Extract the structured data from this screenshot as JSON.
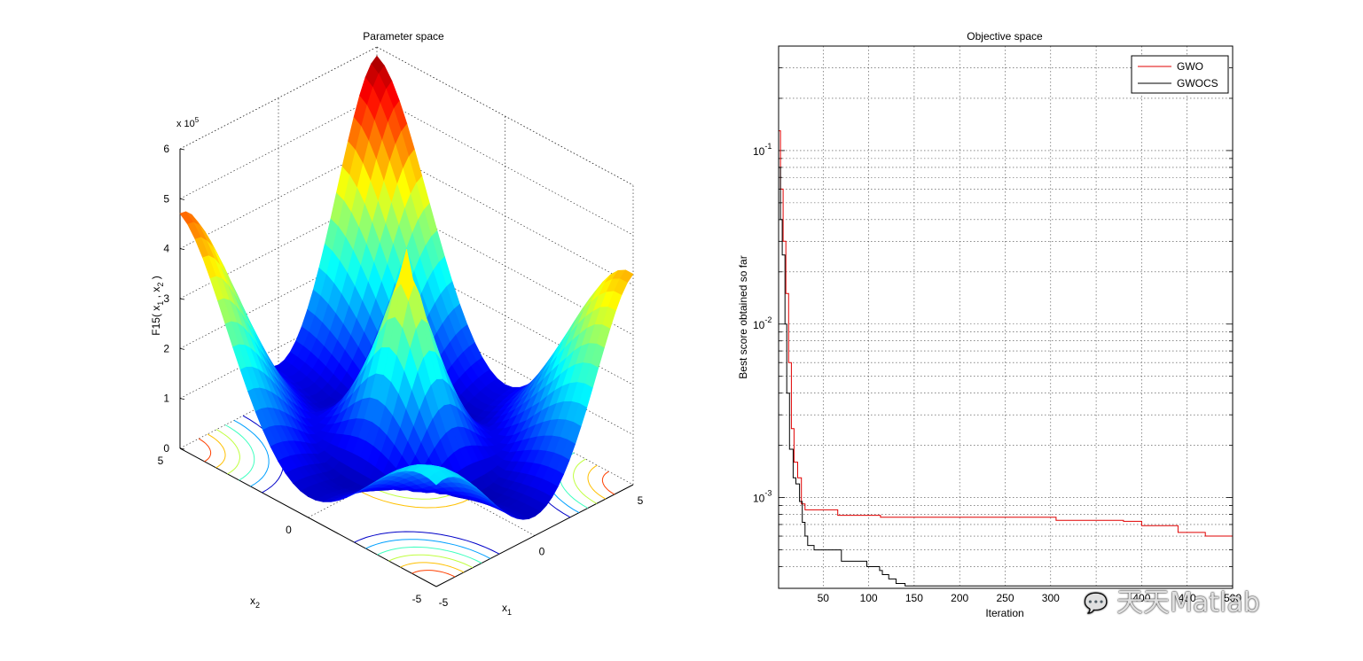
{
  "chart_data": [
    {
      "type": "surface",
      "title": "Parameter space",
      "xlabel_base": "x",
      "xlabel_sub": "1",
      "ylabel_base": "x",
      "ylabel_sub": "2",
      "zlabel": {
        "p1": "F15( x",
        "s1": "1",
        "p2": " , x",
        "s2": "2",
        "p3": " )"
      },
      "zlim": [
        0,
        6
      ],
      "z_exponent": {
        "base": "x 10",
        "power": "5"
      },
      "z_ticks": [
        "0",
        "1",
        "2",
        "3",
        "4",
        "5",
        "6"
      ],
      "x_ticks": [
        "-5",
        "0",
        "5"
      ],
      "y_ticks": [
        "-5",
        "0",
        "5"
      ],
      "colormap": "jet",
      "contours_on_floor": true,
      "corner_heights": {
        "x1=-5,x2=-5": 2.1,
        "x1=5,x2=-5": 4.35,
        "x1=-5,x2=5": 4.85,
        "x1=5,x2=5": 6.0
      },
      "minima_depth": 0
    },
    {
      "type": "line",
      "title": "Objective space",
      "xlabel": "Iteration",
      "ylabel": "Best score obtained so far",
      "yscale": "log",
      "xlim": [
        1,
        500
      ],
      "ylim": [
        0.0003,
        0.4
      ],
      "x_ticks": [
        "50",
        "100",
        "150",
        "200",
        "250",
        "300",
        "350",
        "400",
        "450",
        "500"
      ],
      "y_ticks": [
        {
          "base": "10",
          "exp": "-1"
        },
        {
          "base": "10",
          "exp": "-2"
        },
        {
          "base": "10",
          "exp": "-3"
        }
      ],
      "grid": true,
      "legend": "top-right",
      "series": [
        {
          "name": "GWO",
          "color": "#e00000",
          "points": [
            [
              1,
              0.13
            ],
            [
              3,
              0.06
            ],
            [
              6,
              0.03
            ],
            [
              9,
              0.015
            ],
            [
              12,
              0.006
            ],
            [
              15,
              0.0025
            ],
            [
              18,
              0.0016
            ],
            [
              22,
              0.0013
            ],
            [
              26,
              0.00092
            ],
            [
              30,
              0.00085
            ],
            [
              65,
              0.00085
            ],
            [
              66,
              0.00079
            ],
            [
              112,
              0.00079
            ],
            [
              113,
              0.00077
            ],
            [
              300,
              0.00077
            ],
            [
              306,
              0.00074
            ],
            [
              380,
              0.00073
            ],
            [
              400,
              0.00069
            ],
            [
              440,
              0.00063
            ],
            [
              470,
              0.0006
            ],
            [
              500,
              0.00058
            ]
          ]
        },
        {
          "name": "GWOCS",
          "color": "#000000",
          "points": [
            [
              1,
              0.08
            ],
            [
              3,
              0.04
            ],
            [
              5,
              0.025
            ],
            [
              8,
              0.01
            ],
            [
              10,
              0.004
            ],
            [
              13,
              0.0019
            ],
            [
              17,
              0.0013
            ],
            [
              20,
              0.0012
            ],
            [
              24,
              0.00095
            ],
            [
              27,
              0.00072
            ],
            [
              30,
              0.0006
            ],
            [
              33,
              0.00053
            ],
            [
              40,
              0.0005
            ],
            [
              68,
              0.0005
            ],
            [
              70,
              0.00043
            ],
            [
              95,
              0.00043
            ],
            [
              98,
              0.0004
            ],
            [
              112,
              0.00038
            ],
            [
              115,
              0.00036
            ],
            [
              122,
              0.00034
            ],
            [
              130,
              0.00032
            ],
            [
              140,
              0.00031
            ],
            [
              400,
              0.00031
            ],
            [
              500,
              0.00031
            ]
          ]
        }
      ]
    }
  ],
  "watermark": "天天Matlab",
  "watermark_icon": "wechat-icon"
}
